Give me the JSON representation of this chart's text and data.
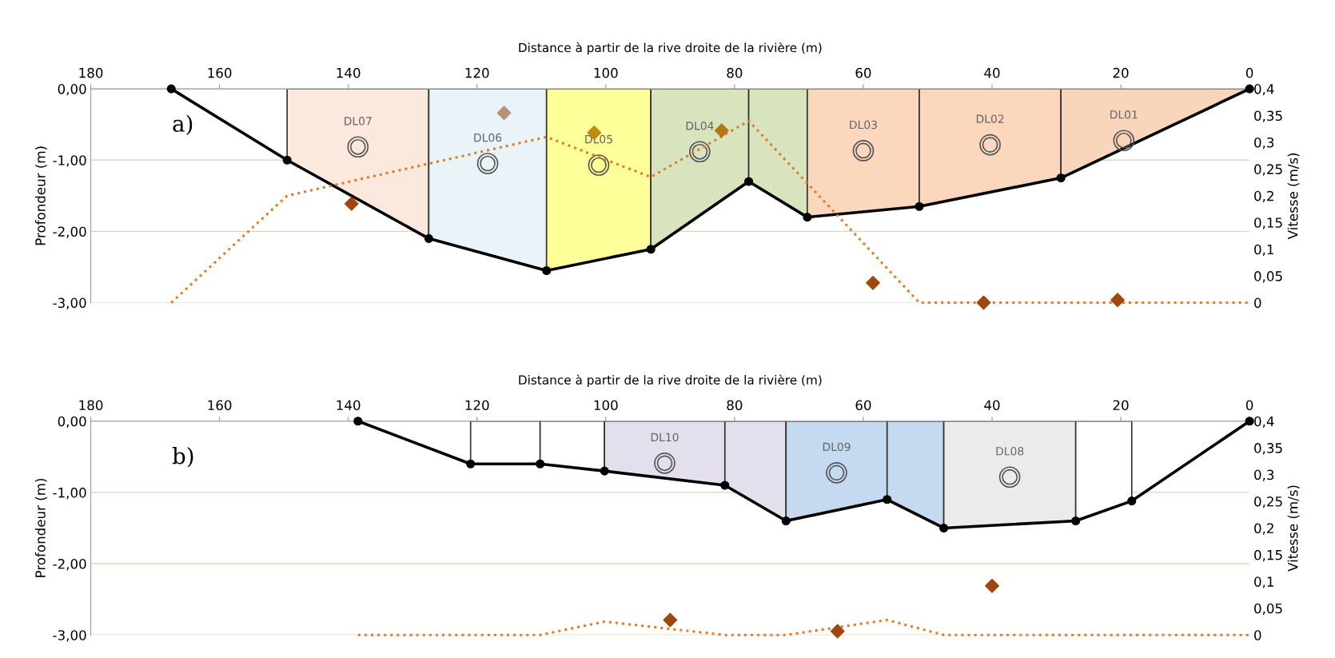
{
  "chart_data": [
    {
      "type": "line",
      "xlabel": "Distance à partir de la rive droite de la rivière (m)",
      "ylabel": "Profondeur (m)",
      "y2label": "Vitesse (m/s)",
      "xlim": [
        180,
        0
      ],
      "xticks": [
        180,
        160,
        140,
        120,
        100,
        80,
        60,
        40,
        20,
        0
      ],
      "ylim": [
        -3,
        0
      ],
      "yticks": [
        {
          "value": 0,
          "label": "0,00"
        },
        {
          "value": -1,
          "label": "-1,00"
        },
        {
          "value": -2,
          "label": "-2,00"
        },
        {
          "value": -3,
          "label": "-3,00"
        }
      ],
      "y2lim": [
        0,
        0.4
      ],
      "y2ticks": [
        0,
        {
          "value": 0.05,
          "label": "0,05"
        },
        {
          "value": 0.1,
          "label": "0,1"
        },
        {
          "value": 0.15,
          "label": "0,15"
        },
        {
          "value": 0.2,
          "label": "0,2"
        },
        {
          "value": 0.25,
          "label": "0,25"
        },
        {
          "value": 0.3,
          "label": "0,3"
        },
        {
          "value": 0.35,
          "label": "0,35"
        },
        {
          "value": 0.4,
          "label": "0,4"
        }
      ],
      "grid": "y",
      "legend": false,
      "series": [
        {
          "type": "area",
          "name": "DL07",
          "color": "#fbe9dd",
          "x": [
            149.5,
            149.5,
            127.5,
            127.5
          ],
          "values": [
            0,
            -1.0,
            -2.1,
            0
          ]
        },
        {
          "type": "area",
          "name": "DL06",
          "color": "#e9f3f8",
          "x": [
            127.5,
            127.5,
            109.2,
            109.2
          ],
          "values": [
            0,
            -2.1,
            -2.55,
            0
          ]
        },
        {
          "type": "area",
          "name": "DL05",
          "color": "#ffff99",
          "x": [
            109.2,
            109.2,
            93,
            93
          ],
          "values": [
            0,
            -2.55,
            -2.25,
            0
          ]
        },
        {
          "type": "area",
          "name": "DL04",
          "color": "#d7e4bd",
          "x": [
            93,
            93,
            77.8,
            77.8
          ],
          "values": [
            0,
            -2.25,
            -1.3,
            0
          ]
        },
        {
          "type": "area",
          "color": "#d7e4bd",
          "x": [
            77.8,
            77.8,
            68.7,
            68.7
          ],
          "values": [
            0,
            -1.3,
            -1.8,
            0
          ]
        },
        {
          "type": "area",
          "name": "DL03",
          "color": "#fad7bd",
          "x": [
            68.7,
            68.7,
            51.3,
            51.3
          ],
          "values": [
            0,
            -1.8,
            -1.65,
            0
          ]
        },
        {
          "type": "area",
          "name": "DL02",
          "color": "#fad7bd",
          "x": [
            51.3,
            51.3,
            29.3,
            29.3
          ],
          "values": [
            0,
            -1.65,
            -1.25,
            0
          ]
        },
        {
          "type": "area",
          "name": "DL01",
          "color": "#f9d5bb",
          "x": [
            0,
            29.3,
            29.3
          ],
          "values": [
            0,
            -1.25,
            0
          ]
        },
        {
          "color": "#000000",
          "marker": "circle",
          "line_style": "solid",
          "x": [
            167.5,
            149.5,
            127.5,
            109.2,
            93,
            77.8,
            68.7,
            51.3,
            29.3,
            0
          ],
          "values": [
            0,
            -1.0,
            -2.1,
            -2.55,
            -2.25,
            -1.3,
            -1.8,
            -1.65,
            -1.25,
            0
          ]
        },
        {
          "axis": "y2",
          "color": "#e07b28",
          "marker": "none",
          "line_style": "dotted",
          "x": [
            167.5,
            149.5,
            109.2,
            93,
            77.8,
            51.3,
            0
          ],
          "values": [
            0,
            0.2,
            0.31,
            0.235,
            0.34,
            0,
            0
          ]
        },
        {
          "type": "scatter",
          "axis": "y2",
          "marker": "diamond",
          "colors": [
            "#a0470e",
            "#b8917a",
            "#c08a10",
            "#b8740e",
            "#a0470e",
            "#a0470e",
            "#a0470e"
          ],
          "x": [
            139.5,
            115.8,
            101.8,
            82,
            58.5,
            41.3,
            20.5
          ],
          "values": [
            0.185,
            0.355,
            0.318,
            0.322,
            0.037,
            0.0,
            0.005
          ]
        }
      ],
      "annotations": [
        "a)"
      ]
    },
    {
      "type": "line",
      "xlabel": "Distance à partir de la rive droite de la rivière (m)",
      "ylabel": "Profondeur (m)",
      "y2label": "Vitesse (m/s)",
      "xlim": [
        180,
        0
      ],
      "xticks": [
        180,
        160,
        140,
        120,
        100,
        80,
        60,
        40,
        20,
        0
      ],
      "ylim": [
        -3,
        0
      ],
      "yticks": [
        {
          "value": 0,
          "label": "0,00"
        },
        {
          "value": -1,
          "label": "-1,00"
        },
        {
          "value": -2,
          "label": "-2,00"
        },
        {
          "value": -3,
          "label": "-3,00"
        }
      ],
      "y2lim": [
        0,
        0.4
      ],
      "y2ticks": [
        0,
        {
          "value": 0.05,
          "label": "0,05"
        },
        {
          "value": 0.1,
          "label": "0,1"
        },
        {
          "value": 0.15,
          "label": "0,15"
        },
        {
          "value": 0.2,
          "label": "0,2"
        },
        {
          "value": 0.25,
          "label": "0,25"
        },
        {
          "value": 0.3,
          "label": "0,3"
        },
        {
          "value": 0.35,
          "label": "0,35"
        },
        {
          "value": 0.4,
          "label": "0,4"
        }
      ],
      "grid": "y",
      "legend": false,
      "series": [
        {
          "type": "area",
          "color": "#ffffff",
          "x": [
            121,
            121,
            110.2,
            110.2
          ],
          "values": [
            0,
            -0.6,
            -0.6,
            0
          ]
        },
        {
          "type": "area",
          "color": "#ffffff",
          "x": [
            110.2,
            110.2,
            100.2,
            100.2
          ],
          "values": [
            0,
            -0.6,
            -0.7,
            0
          ]
        },
        {
          "type": "area",
          "name": "DL10",
          "color": "#e4dfec",
          "x": [
            100.2,
            100.2,
            81.5,
            81.5
          ],
          "values": [
            0,
            -0.7,
            -0.9,
            0
          ]
        },
        {
          "type": "area",
          "color": "#e4dfec",
          "x": [
            81.5,
            81.5,
            72,
            72
          ],
          "values": [
            0,
            -0.9,
            -1.4,
            0
          ]
        },
        {
          "type": "area",
          "name": "DL09",
          "color": "#c5d9f1",
          "x": [
            72,
            72,
            56.3,
            56.3
          ],
          "values": [
            0,
            -1.4,
            -1.1,
            0
          ]
        },
        {
          "type": "area",
          "color": "#c5d9f1",
          "x": [
            56.3,
            56.3,
            47.5,
            47.5
          ],
          "values": [
            0,
            -1.1,
            -1.5,
            0
          ]
        },
        {
          "type": "area",
          "name": "DL08",
          "color": "#ebebeb",
          "x": [
            47.5,
            47.5,
            27,
            27
          ],
          "values": [
            0,
            -1.5,
            -1.4,
            0
          ]
        },
        {
          "type": "area",
          "color": "#ffffff",
          "x": [
            27,
            27,
            18.3,
            18.3
          ],
          "values": [
            0,
            -1.4,
            -1.12,
            0
          ]
        },
        {
          "color": "#000000",
          "marker": "circle",
          "line_style": "solid",
          "x": [
            138.5,
            121,
            110.2,
            100.2,
            81.5,
            72,
            56.3,
            47.5,
            27,
            18.3,
            0
          ],
          "values": [
            0,
            -0.6,
            -0.6,
            -0.7,
            -0.9,
            -1.4,
            -1.1,
            -1.5,
            -1.4,
            -1.12,
            0
          ]
        },
        {
          "axis": "y2",
          "color": "#e07b28",
          "marker": "none",
          "line_style": "dotted",
          "x": [
            138.5,
            110.2,
            100.2,
            81.5,
            72,
            56.3,
            47.5,
            0
          ],
          "values": [
            0,
            0,
            0.025,
            0,
            0,
            0.028,
            0,
            0
          ]
        },
        {
          "type": "scatter",
          "axis": "y2",
          "marker": "diamond",
          "colors": [
            "#a0470e",
            "#a0470e",
            "#a0470e"
          ],
          "x": [
            90,
            64,
            40
          ],
          "values": [
            0.028,
            0.007,
            0.092
          ]
        }
      ],
      "annotations": [
        "b)"
      ]
    }
  ]
}
